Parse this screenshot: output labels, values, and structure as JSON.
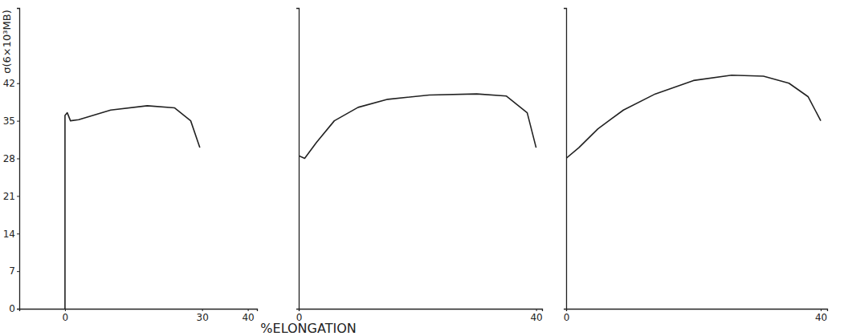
{
  "chart_data": [
    {
      "type": "line",
      "y_label": "σ(6×10³MB)",
      "color": "#222222",
      "x": [
        0,
        0,
        0.5,
        1.2,
        3,
        10,
        18,
        24,
        27.5,
        29.5
      ],
      "values": [
        0,
        36,
        36.5,
        35,
        35.2,
        37,
        37.8,
        37.4,
        35,
        30
      ],
      "xlim": [
        -10,
        42
      ],
      "ylim": [
        0,
        56
      ],
      "xticks": [
        0,
        30,
        40
      ],
      "yticks": [
        0,
        7,
        14,
        21,
        28,
        35,
        42
      ]
    },
    {
      "type": "line",
      "x_label": "%ELONGATION",
      "color": "#222222",
      "x": [
        0,
        0,
        1,
        3,
        6,
        10,
        15,
        22,
        30,
        35,
        38.5,
        40
      ],
      "values": [
        0,
        28.5,
        28,
        31,
        35,
        37.5,
        39,
        39.8,
        40,
        39.6,
        36.5,
        30
      ],
      "xlim": [
        0,
        41
      ],
      "ylim": [
        0,
        56
      ],
      "xticks": [
        0,
        40
      ],
      "tick_labels": "x"
    },
    {
      "type": "line",
      "color": "#222222",
      "x": [
        0,
        0,
        2,
        5,
        9,
        14,
        20,
        26,
        31,
        35,
        38,
        40
      ],
      "values": [
        0,
        28,
        30,
        33.5,
        37,
        40,
        42.5,
        43.5,
        43.3,
        42,
        39.5,
        35
      ],
      "xlim": [
        0,
        41
      ],
      "ylim": [
        0,
        56
      ],
      "xticks": [
        0,
        40
      ],
      "tick_labels": "x"
    }
  ]
}
